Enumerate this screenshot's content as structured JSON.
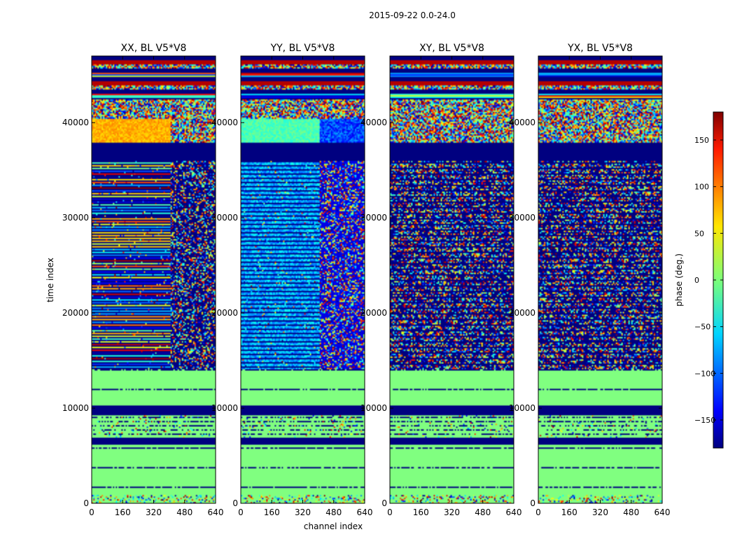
{
  "figure_title": "2015-09-22 0.0-24.0",
  "chart_data": {
    "type": "heatmap",
    "title": "2015-09-22 0.0-24.0",
    "xlabel": "channel index",
    "ylabel": "time index",
    "xlim": [
      0,
      640
    ],
    "ylim": [
      0,
      47000
    ],
    "xticks": [
      0,
      160,
      320,
      480,
      640
    ],
    "yticks": [
      0,
      10000,
      20000,
      30000,
      40000
    ],
    "panels": [
      {
        "title": "XX, BL V5*V8",
        "pol": "XX"
      },
      {
        "title": "YY, BL V5*V8",
        "pol": "YY"
      },
      {
        "title": "XY, BL V5*V8",
        "pol": "XY"
      },
      {
        "title": "YX, BL V5*V8",
        "pol": "YX"
      }
    ],
    "colorbar": {
      "label": "phase (deg.)",
      "range": [
        -180,
        180
      ],
      "ticks": [
        -150,
        -100,
        -50,
        0,
        50,
        100,
        150
      ],
      "colormap": "jet"
    }
  }
}
